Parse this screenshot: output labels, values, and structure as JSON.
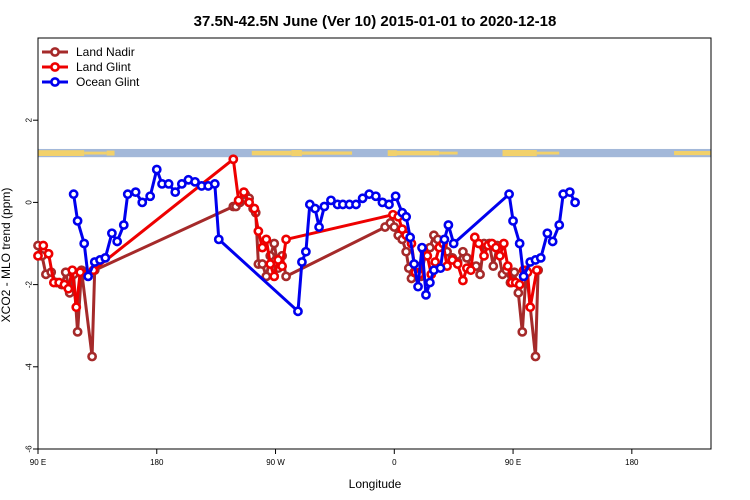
{
  "chart_data": {
    "type": "line",
    "title": "37.5N-42.5N June (Ver 10)   2015-01-01 to 2020-12-18",
    "xlabel": "Longitude",
    "ylabel": "XCO2 - MLO trend (ppm)",
    "xlim": [
      -90,
      420
    ],
    "ylim": [
      -6,
      4
    ],
    "x_ticks": [
      {
        "value": -90,
        "label": "90 E"
      },
      {
        "value": 0,
        "label": "180"
      },
      {
        "value": 90,
        "label": "90 W"
      },
      {
        "value": 180,
        "label": "0"
      },
      {
        "value": 270,
        "label": "90 E"
      },
      {
        "value": 360,
        "label": "180"
      }
    ],
    "y_ticks": [
      {
        "value": -6,
        "label": "-6"
      },
      {
        "value": -4,
        "label": "-4"
      },
      {
        "value": -2,
        "label": "-2"
      },
      {
        "value": 0,
        "label": "0"
      },
      {
        "value": 2,
        "label": "2"
      }
    ],
    "grid": false,
    "legend_position": "top-left",
    "land_sea_band": {
      "y_range": [
        1.1,
        1.3
      ],
      "land_color": "#f2d16b",
      "ocean_color": "#a3b8d9"
    },
    "series": [
      {
        "name": "Land Nadir",
        "color": "#a52a2a",
        "points": [
          [
            -90,
            -1.05
          ],
          [
            -87,
            -1.3
          ],
          [
            -84,
            -1.75
          ],
          [
            -80,
            -1.7
          ],
          [
            -76,
            -1.95
          ],
          [
            -72,
            -2.0
          ],
          [
            -69,
            -1.7
          ],
          [
            -66,
            -2.2
          ],
          [
            -63,
            -1.75
          ],
          [
            -60,
            -3.15
          ],
          [
            -57,
            -1.65
          ],
          [
            -49,
            -3.75
          ],
          [
            -47,
            -1.65
          ],
          [
            58,
            -0.1
          ],
          [
            60,
            -0.1
          ],
          [
            63,
            0.0
          ],
          [
            67,
            0.2
          ],
          [
            70,
            0.1
          ],
          [
            73,
            -0.15
          ],
          [
            75,
            -0.25
          ],
          [
            77,
            -1.5
          ],
          [
            80,
            -1.5
          ],
          [
            83,
            -1.8
          ],
          [
            86,
            -1.3
          ],
          [
            89,
            -1.0
          ],
          [
            92,
            -1.6
          ],
          [
            95,
            -1.3
          ],
          [
            98,
            -1.8
          ],
          [
            173,
            -0.6
          ],
          [
            177,
            -0.5
          ],
          [
            180,
            -0.6
          ],
          [
            183,
            -0.8
          ],
          [
            186,
            -0.9
          ],
          [
            189,
            -1.2
          ],
          [
            191,
            -1.6
          ],
          [
            193,
            -1.85
          ],
          [
            195,
            -1.7
          ],
          [
            197,
            -1.55
          ],
          [
            200,
            -1.8
          ],
          [
            204,
            -1.2
          ],
          [
            207,
            -1.1
          ],
          [
            210,
            -0.8
          ],
          [
            213,
            -0.9
          ],
          [
            217,
            -1.1
          ],
          [
            220,
            -1.2
          ],
          [
            224,
            -1.35
          ],
          [
            228,
            -1.45
          ],
          [
            232,
            -1.2
          ],
          [
            235,
            -1.35
          ],
          [
            238,
            -1.6
          ],
          [
            242,
            -1.55
          ],
          [
            245,
            -1.75
          ],
          [
            248,
            -1.0
          ],
          [
            252,
            -1.0
          ],
          [
            255,
            -1.55
          ],
          [
            258,
            -1.05
          ],
          [
            262,
            -1.75
          ],
          [
            265,
            -1.65
          ],
          [
            268,
            -1.95
          ],
          [
            271,
            -1.7
          ],
          [
            274,
            -2.2
          ],
          [
            277,
            -3.15
          ],
          [
            280,
            -1.65
          ],
          [
            287,
            -3.75
          ],
          [
            289,
            -1.65
          ]
        ]
      },
      {
        "name": "Land Glint",
        "color": "#ee0000",
        "points": [
          [
            -90,
            -1.3
          ],
          [
            -86,
            -1.05
          ],
          [
            -82,
            -1.25
          ],
          [
            -78,
            -1.95
          ],
          [
            -74,
            -1.95
          ],
          [
            -70,
            -2.0
          ],
          [
            -67,
            -2.1
          ],
          [
            -64,
            -1.65
          ],
          [
            -61,
            -2.55
          ],
          [
            -58,
            -1.7
          ],
          [
            -48,
            -1.65
          ],
          [
            58,
            1.05
          ],
          [
            62,
            0.05
          ],
          [
            66,
            0.25
          ],
          [
            70,
            0.0
          ],
          [
            74,
            -0.15
          ],
          [
            77,
            -0.7
          ],
          [
            80,
            -1.1
          ],
          [
            83,
            -0.9
          ],
          [
            86,
            -1.5
          ],
          [
            89,
            -1.8
          ],
          [
            92,
            -1.4
          ],
          [
            95,
            -1.55
          ],
          [
            98,
            -0.9
          ],
          [
            179,
            -0.3
          ],
          [
            183,
            -0.35
          ],
          [
            186,
            -0.65
          ],
          [
            189,
            -0.8
          ],
          [
            193,
            -1.0
          ],
          [
            196,
            -1.7
          ],
          [
            199,
            -1.75
          ],
          [
            202,
            -1.15
          ],
          [
            205,
            -1.3
          ],
          [
            208,
            -1.75
          ],
          [
            211,
            -1.45
          ],
          [
            214,
            -1.1
          ],
          [
            217,
            -1.0
          ],
          [
            220,
            -1.55
          ],
          [
            224,
            -1.4
          ],
          [
            228,
            -1.5
          ],
          [
            232,
            -1.9
          ],
          [
            235,
            -1.6
          ],
          [
            238,
            -1.65
          ],
          [
            241,
            -0.85
          ],
          [
            244,
            -1.0
          ],
          [
            248,
            -1.3
          ],
          [
            251,
            -1.05
          ],
          [
            254,
            -1.0
          ],
          [
            257,
            -1.1
          ],
          [
            260,
            -1.3
          ],
          [
            263,
            -1.0
          ],
          [
            266,
            -1.55
          ],
          [
            269,
            -1.95
          ],
          [
            272,
            -1.95
          ],
          [
            275,
            -2.0
          ],
          [
            278,
            -1.65
          ],
          [
            281,
            -1.7
          ],
          [
            283,
            -2.55
          ],
          [
            288,
            -1.65
          ]
        ]
      },
      {
        "name": "Ocean Glint",
        "color": "#0000ee",
        "points": [
          [
            -63,
            0.2
          ],
          [
            -60,
            -0.45
          ],
          [
            -55,
            -1.0
          ],
          [
            -52,
            -1.8
          ],
          [
            -47,
            -1.45
          ],
          [
            -43,
            -1.4
          ],
          [
            -39,
            -1.35
          ],
          [
            -34,
            -0.75
          ],
          [
            -30,
            -0.95
          ],
          [
            -25,
            -0.55
          ],
          [
            -22,
            0.2
          ],
          [
            -16,
            0.25
          ],
          [
            -11,
            0.0
          ],
          [
            -5,
            0.15
          ],
          [
            0,
            0.8
          ],
          [
            4,
            0.45
          ],
          [
            9,
            0.45
          ],
          [
            14,
            0.25
          ],
          [
            19,
            0.45
          ],
          [
            24,
            0.55
          ],
          [
            29,
            0.5
          ],
          [
            34,
            0.4
          ],
          [
            39,
            0.4
          ],
          [
            44,
            0.45
          ],
          [
            47,
            -0.9
          ],
          [
            107,
            -2.65
          ],
          [
            110,
            -1.45
          ],
          [
            113,
            -1.2
          ],
          [
            116,
            -0.05
          ],
          [
            120,
            -0.15
          ],
          [
            123,
            -0.6
          ],
          [
            127,
            -0.1
          ],
          [
            132,
            0.05
          ],
          [
            137,
            -0.05
          ],
          [
            141,
            -0.05
          ],
          [
            146,
            -0.05
          ],
          [
            151,
            -0.05
          ],
          [
            156,
            0.1
          ],
          [
            161,
            0.2
          ],
          [
            166,
            0.15
          ],
          [
            171,
            0.0
          ],
          [
            176,
            -0.05
          ],
          [
            181,
            0.15
          ],
          [
            186,
            -0.25
          ],
          [
            189,
            -0.35
          ],
          [
            192,
            -0.85
          ],
          [
            195,
            -1.5
          ],
          [
            198,
            -2.05
          ],
          [
            201,
            -1.1
          ],
          [
            204,
            -2.25
          ],
          [
            207,
            -1.95
          ],
          [
            210,
            -1.65
          ],
          [
            215,
            -1.6
          ],
          [
            218,
            -0.9
          ],
          [
            221,
            -0.55
          ],
          [
            225,
            -1.0
          ],
          [
            267,
            0.2
          ],
          [
            270,
            -0.45
          ],
          [
            275,
            -1.0
          ],
          [
            278,
            -1.8
          ],
          [
            283,
            -1.45
          ],
          [
            287,
            -1.4
          ],
          [
            291,
            -1.35
          ],
          [
            296,
            -0.75
          ],
          [
            300,
            -0.95
          ],
          [
            305,
            -0.55
          ],
          [
            308,
            0.2
          ],
          [
            313,
            0.25
          ],
          [
            317,
            0.0
          ]
        ]
      }
    ]
  }
}
